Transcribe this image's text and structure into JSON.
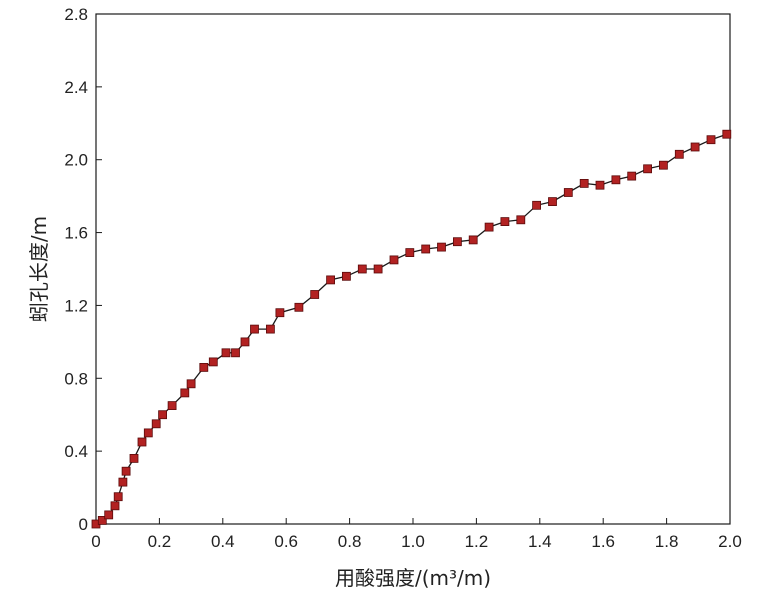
{
  "chart_data": {
    "type": "line",
    "xlabel": "用酸强度/(m³/m)",
    "ylabel": "蚓孔长度/m",
    "xlim": [
      0,
      2.0
    ],
    "ylim": [
      0,
      2.8
    ],
    "x_ticks": [
      "0",
      "0.2",
      "0.4",
      "0.6",
      "0.8",
      "1.0",
      "1.2",
      "1.4",
      "1.6",
      "1.8",
      "2.0"
    ],
    "y_ticks": [
      "0",
      "0.4",
      "0.8",
      "1.2",
      "1.6",
      "2.0",
      "2.4",
      "2.8"
    ],
    "grid": false,
    "legend": "none",
    "colors": {
      "line": "#1a1a1a",
      "marker": "#b22222",
      "marker_edge": "#5a0a0a"
    },
    "series": [
      {
        "marker": "square",
        "points": [
          [
            0.0,
            0.0
          ],
          [
            0.02,
            0.02
          ],
          [
            0.04,
            0.05
          ],
          [
            0.06,
            0.1
          ],
          [
            0.07,
            0.15
          ],
          [
            0.085,
            0.23
          ],
          [
            0.095,
            0.29
          ],
          [
            0.12,
            0.36
          ],
          [
            0.145,
            0.45
          ],
          [
            0.165,
            0.5
          ],
          [
            0.19,
            0.55
          ],
          [
            0.21,
            0.6
          ],
          [
            0.24,
            0.65
          ],
          [
            0.28,
            0.72
          ],
          [
            0.3,
            0.77
          ],
          [
            0.34,
            0.86
          ],
          [
            0.37,
            0.89
          ],
          [
            0.41,
            0.94
          ],
          [
            0.44,
            0.94
          ],
          [
            0.47,
            1.0
          ],
          [
            0.5,
            1.07
          ],
          [
            0.55,
            1.07
          ],
          [
            0.58,
            1.16
          ],
          [
            0.64,
            1.19
          ],
          [
            0.69,
            1.26
          ],
          [
            0.74,
            1.34
          ],
          [
            0.79,
            1.36
          ],
          [
            0.84,
            1.4
          ],
          [
            0.89,
            1.4
          ],
          [
            0.94,
            1.45
          ],
          [
            0.99,
            1.49
          ],
          [
            1.04,
            1.51
          ],
          [
            1.09,
            1.52
          ],
          [
            1.14,
            1.55
          ],
          [
            1.19,
            1.56
          ],
          [
            1.24,
            1.63
          ],
          [
            1.29,
            1.66
          ],
          [
            1.34,
            1.67
          ],
          [
            1.39,
            1.75
          ],
          [
            1.44,
            1.77
          ],
          [
            1.49,
            1.82
          ],
          [
            1.54,
            1.87
          ],
          [
            1.59,
            1.86
          ],
          [
            1.64,
            1.89
          ],
          [
            1.69,
            1.91
          ],
          [
            1.74,
            1.95
          ],
          [
            1.79,
            1.97
          ],
          [
            1.84,
            2.03
          ],
          [
            1.89,
            2.07
          ],
          [
            1.94,
            2.11
          ],
          [
            1.99,
            2.14
          ]
        ]
      }
    ]
  }
}
